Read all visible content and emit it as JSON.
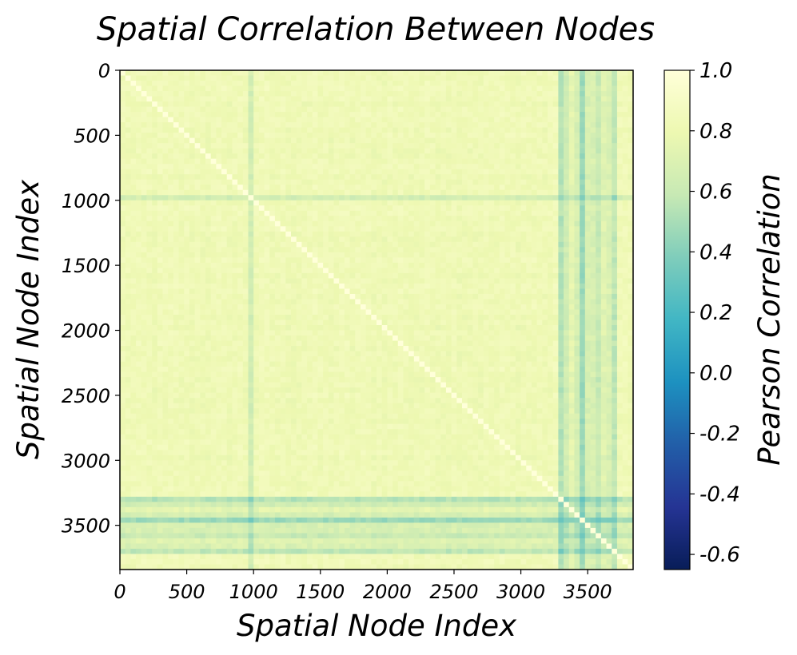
{
  "chart_data": {
    "type": "heatmap",
    "title": "Spatial Correlation Between Nodes",
    "xlabel": "Spatial Node Index",
    "ylabel": "Spatial Node Index",
    "n_nodes": 3840,
    "xlim": [
      0,
      3840
    ],
    "ylim": [
      3840,
      0
    ],
    "xticks": [
      0,
      500,
      1000,
      1500,
      2000,
      2500,
      3000,
      3500
    ],
    "xtick_labels": [
      "0",
      "500",
      "1000",
      "1500",
      "2000",
      "2500",
      "3000",
      "3500"
    ],
    "yticks": [
      0,
      500,
      1000,
      1500,
      2000,
      2500,
      3000,
      3500
    ],
    "ytick_labels": [
      "0",
      "500",
      "1000",
      "1500",
      "2000",
      "2500",
      "3000",
      "3500"
    ],
    "colorbar": {
      "label": "Pearson Correlation",
      "vmin": -0.65,
      "vmax": 1.0,
      "ticks": [
        1.0,
        0.8,
        0.6,
        0.4,
        0.2,
        0.0,
        -0.2,
        -0.4,
        -0.6
      ],
      "tick_labels": [
        "1.0",
        "0.8",
        "0.6",
        "0.4",
        "0.2",
        "0.0",
        "-0.2",
        "-0.4",
        "-0.6"
      ],
      "colormap": "YlGnBu",
      "colors": [
        "#081d58",
        "#253494",
        "#225ea8",
        "#1d91c0",
        "#41b6c4",
        "#7fcdbb",
        "#c7e9b4",
        "#edf8b1",
        "#ffffd9"
      ]
    },
    "typical_correlation": 0.85,
    "low_correlation_node_ranges": [
      {
        "start": 3300,
        "end": 3720,
        "min_correlation": 0.3
      },
      {
        "start": 960,
        "end": 1000,
        "min_correlation": 0.5
      }
    ]
  }
}
